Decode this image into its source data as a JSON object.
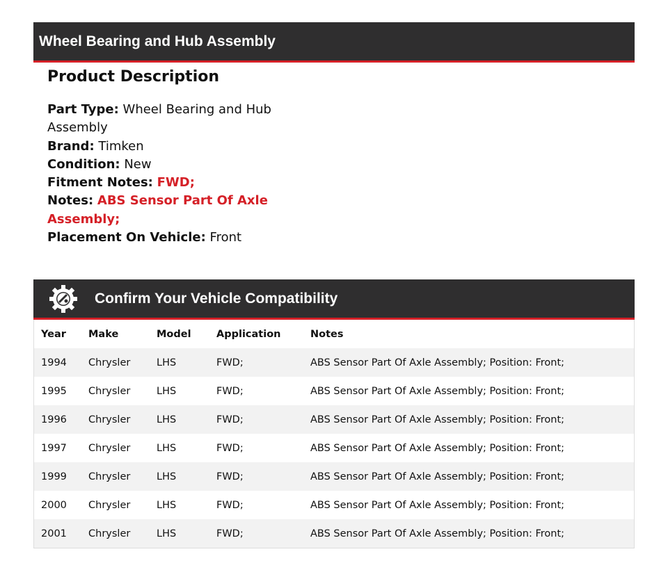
{
  "header": {
    "title": "Wheel Bearing and Hub Assembly"
  },
  "description": {
    "heading": "Product Description",
    "fields": [
      {
        "label": "Part Type:",
        "value": "Wheel Bearing and Hub Assembly",
        "highlight": false
      },
      {
        "label": "Brand:",
        "value": "Timken",
        "highlight": false
      },
      {
        "label": "Condition:",
        "value": "New",
        "highlight": false
      },
      {
        "label": "Fitment Notes:",
        "value": "FWD;",
        "highlight": true
      },
      {
        "label": "Notes:",
        "value": "ABS Sensor Part Of Axle Assembly;",
        "highlight": true
      },
      {
        "label": "Placement On Vehicle:",
        "value": "Front",
        "highlight": false
      }
    ]
  },
  "compat": {
    "title": "Confirm Your Vehicle Compatibility",
    "icon": "gear-wrench-icon",
    "columns": [
      "Year",
      "Make",
      "Model",
      "Application",
      "Notes"
    ],
    "rows": [
      [
        "1994",
        "Chrysler",
        "LHS",
        "FWD;",
        "ABS Sensor Part Of Axle Assembly; Position: Front;"
      ],
      [
        "1995",
        "Chrysler",
        "LHS",
        "FWD;",
        "ABS Sensor Part Of Axle Assembly; Position: Front;"
      ],
      [
        "1996",
        "Chrysler",
        "LHS",
        "FWD;",
        "ABS Sensor Part Of Axle Assembly; Position: Front;"
      ],
      [
        "1997",
        "Chrysler",
        "LHS",
        "FWD;",
        "ABS Sensor Part Of Axle Assembly; Position: Front;"
      ],
      [
        "1999",
        "Chrysler",
        "LHS",
        "FWD;",
        "ABS Sensor Part Of Axle Assembly; Position: Front;"
      ],
      [
        "2000",
        "Chrysler",
        "LHS",
        "FWD;",
        "ABS Sensor Part Of Axle Assembly; Position: Front;"
      ],
      [
        "2001",
        "Chrysler",
        "LHS",
        "FWD;",
        "ABS Sensor Part Of Axle Assembly; Position: Front;"
      ]
    ]
  },
  "colors": {
    "accent": "#d52027",
    "bar": "#2f2e2f"
  }
}
